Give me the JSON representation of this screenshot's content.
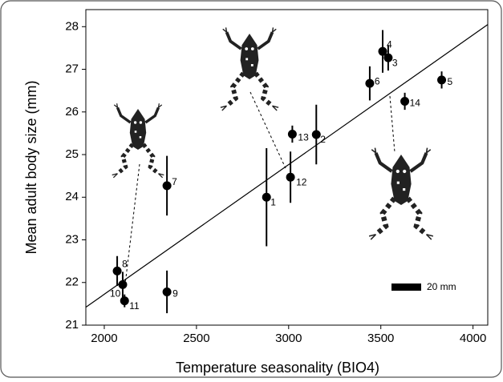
{
  "chart_data": {
    "type": "scatter",
    "x_label": "Temperature seasonality (BIO4)",
    "y_label": "Mean adult body size (mm)",
    "x": [
      2880,
      3150,
      3540,
      3510,
      3830,
      3440,
      2340,
      2070,
      2340,
      2100,
      2110,
      3010,
      3020,
      3630
    ],
    "values": [
      24.0,
      25.47,
      27.27,
      27.42,
      26.75,
      26.67,
      24.27,
      22.27,
      21.78,
      21.95,
      21.57,
      24.47,
      25.48,
      26.25
    ],
    "errors": [
      1.15,
      0.7,
      0.3,
      0.5,
      0.2,
      0.4,
      0.7,
      0.35,
      0.5,
      0.3,
      0.15,
      0.6,
      0.2,
      0.2
    ],
    "point_labels": [
      "1",
      "2",
      "3",
      "4",
      "5",
      "6",
      "7",
      "8",
      "9",
      "10",
      "11",
      "12",
      "13",
      "14"
    ],
    "color": "#000000",
    "fit_line": {
      "x": [
        1900,
        4080
      ],
      "y": [
        21.42,
        28.05
      ]
    },
    "scale_bar_label": "20 mm",
    "xlim": [
      1900,
      4080
    ],
    "ylim": [
      21,
      28.4
    ],
    "xticks": [
      2000,
      2500,
      3000,
      3500,
      4000
    ],
    "yticks": [
      21,
      22,
      23,
      24,
      25,
      26,
      27,
      28
    ]
  }
}
